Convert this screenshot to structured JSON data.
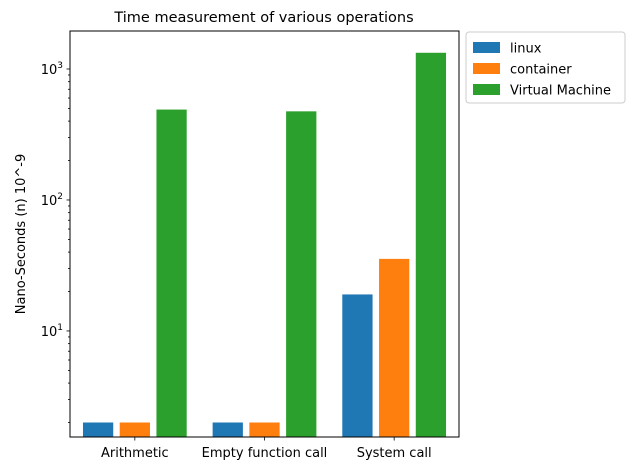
{
  "chart_data": {
    "type": "bar",
    "title": "Time measurement of various operations",
    "xlabel": "",
    "ylabel": "Nano-Seconds (n) 10^-9",
    "yscale": "log",
    "ylim": [
      1.55,
      1950
    ],
    "categories": [
      "Arithmetic",
      "Empty function call",
      "System call"
    ],
    "series": [
      {
        "name": "linux",
        "color": "#1f77b4",
        "values": [
          2,
          2,
          19
        ]
      },
      {
        "name": "container",
        "color": "#ff7f0e",
        "values": [
          2,
          2,
          35.5
        ]
      },
      {
        "name": "Virtual Machine",
        "color": "#2ca02c",
        "values": [
          490,
          475,
          1330
        ]
      }
    ],
    "y_major_ticks": [
      {
        "value": 10,
        "base": "10",
        "exp": "1"
      },
      {
        "value": 100,
        "base": "10",
        "exp": "2"
      },
      {
        "value": 1000,
        "base": "10",
        "exp": "3"
      }
    ],
    "legend_position": "outside upper right",
    "grid": false
  }
}
